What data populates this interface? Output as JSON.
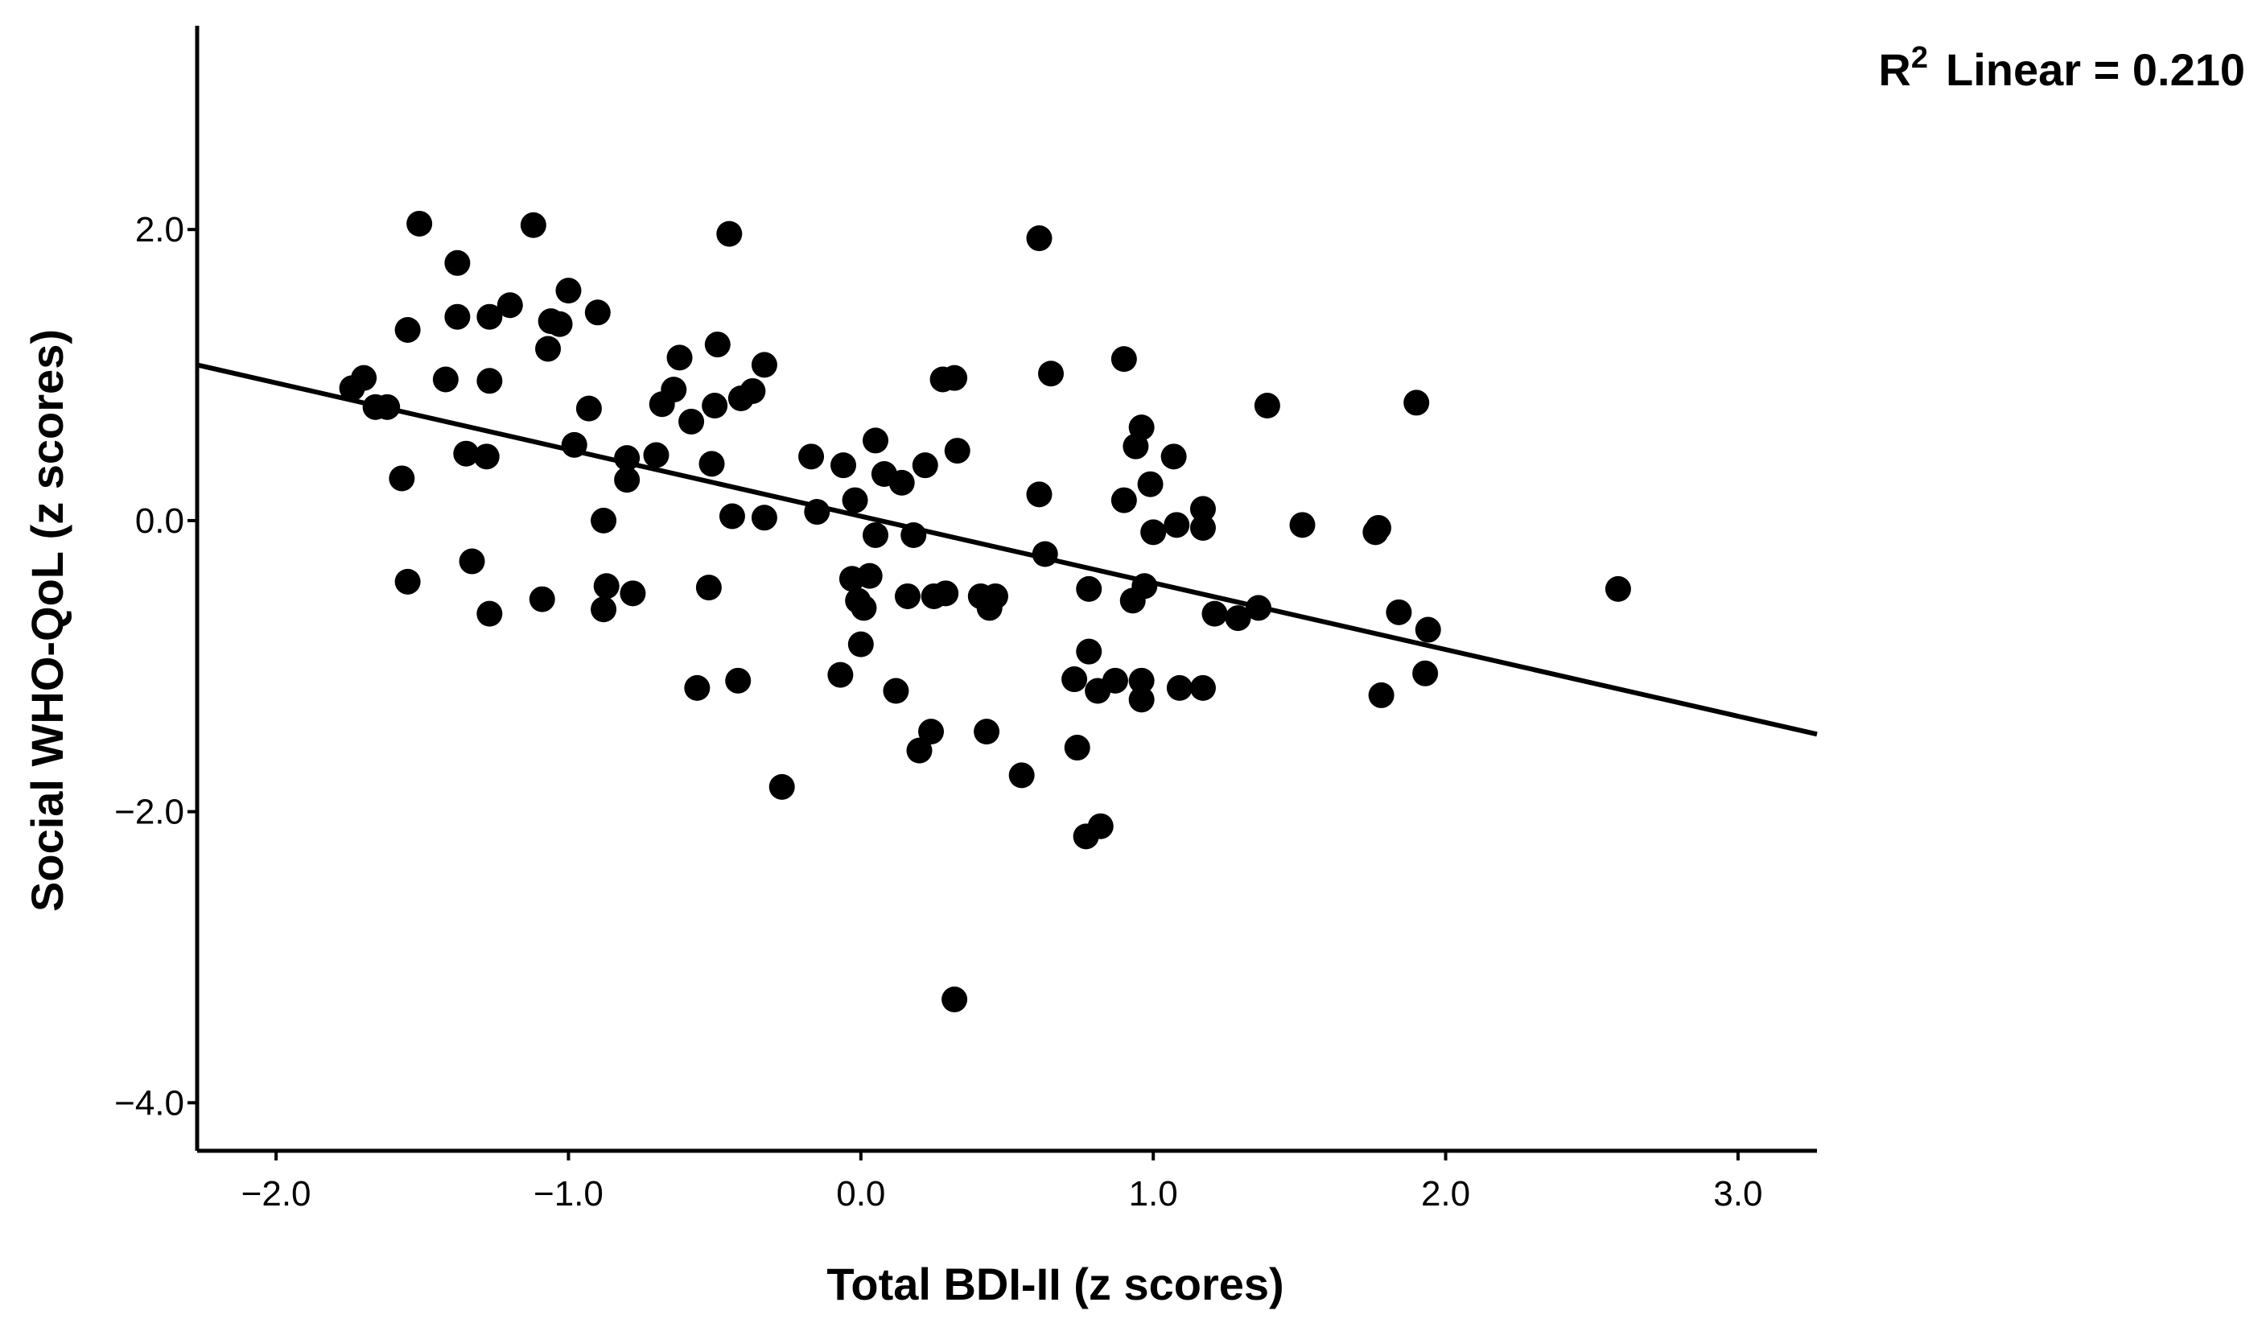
{
  "chart_data": {
    "type": "scatter",
    "xlabel": "Total BDI-II (z scores)",
    "ylabel": "Social WHO-QoL (z scores)",
    "xlim": [
      -2.27,
      3.27
    ],
    "ylim": [
      -4.33,
      3.4
    ],
    "x_ticks": [
      -2.0,
      -1.0,
      0.0,
      1.0,
      2.0,
      3.0
    ],
    "x_tick_labels": [
      "−2.0",
      "−1.0",
      "0.0",
      "1.0",
      "2.0",
      "3.0"
    ],
    "y_ticks": [
      2.0,
      0.0,
      -2.0,
      -4.0
    ],
    "y_tick_labels": [
      "2.0",
      "0.0",
      "−2.0",
      "−4.0"
    ],
    "grid": false,
    "annotation": {
      "prefix": "R",
      "superscript": "2",
      "text": "Linear = 0.210"
    },
    "fit_line": {
      "slope": -0.458,
      "intercept": 0.03
    },
    "series": [
      {
        "marker_color": "#000000",
        "points": [
          [
            -1.74,
            0.91
          ],
          [
            -1.7,
            0.98
          ],
          [
            -1.66,
            0.78
          ],
          [
            -1.62,
            0.78
          ],
          [
            -1.57,
            0.29
          ],
          [
            -1.55,
            1.31
          ],
          [
            -1.55,
            -0.42
          ],
          [
            -1.51,
            2.04
          ],
          [
            -1.42,
            0.97
          ],
          [
            -1.38,
            1.77
          ],
          [
            -1.38,
            1.4
          ],
          [
            -1.35,
            0.46
          ],
          [
            -1.33,
            -0.28
          ],
          [
            -1.28,
            0.44
          ],
          [
            -1.27,
            1.4
          ],
          [
            -1.27,
            0.96
          ],
          [
            -1.27,
            -0.64
          ],
          [
            -1.2,
            1.48
          ],
          [
            -1.12,
            2.03
          ],
          [
            -1.09,
            -0.54
          ],
          [
            -1.07,
            1.18
          ],
          [
            -1.06,
            1.37
          ],
          [
            -1.03,
            1.35
          ],
          [
            -1.0,
            1.58
          ],
          [
            -0.98,
            0.52
          ],
          [
            -0.93,
            0.77
          ],
          [
            -0.9,
            1.43
          ],
          [
            -0.88,
            0.0
          ],
          [
            -0.87,
            -0.45
          ],
          [
            -0.88,
            -0.61
          ],
          [
            -0.8,
            0.43
          ],
          [
            -0.8,
            0.28
          ],
          [
            -0.78,
            -0.5
          ],
          [
            -0.7,
            0.45
          ],
          [
            -0.68,
            0.8
          ],
          [
            -0.64,
            0.9
          ],
          [
            -0.62,
            1.12
          ],
          [
            -0.58,
            0.68
          ],
          [
            -0.56,
            -1.15
          ],
          [
            -0.52,
            -0.46
          ],
          [
            -0.51,
            0.39
          ],
          [
            -0.5,
            0.79
          ],
          [
            -0.49,
            1.21
          ],
          [
            -0.45,
            1.97
          ],
          [
            -0.44,
            0.03
          ],
          [
            -0.42,
            -1.1
          ],
          [
            -0.41,
            0.84
          ],
          [
            -0.37,
            0.89
          ],
          [
            -0.33,
            0.02
          ],
          [
            -0.33,
            1.07
          ],
          [
            -0.27,
            -1.83
          ],
          [
            -0.17,
            0.44
          ],
          [
            -0.15,
            0.06
          ],
          [
            -0.07,
            -1.06
          ],
          [
            -0.06,
            0.38
          ],
          [
            -0.03,
            -0.4
          ],
          [
            -0.02,
            0.14
          ],
          [
            -0.01,
            -0.55
          ],
          [
            0.0,
            -0.85
          ],
          [
            0.01,
            -0.6
          ],
          [
            0.03,
            -0.38
          ],
          [
            0.05,
            -0.1
          ],
          [
            0.05,
            0.55
          ],
          [
            0.08,
            0.32
          ],
          [
            0.12,
            -1.17
          ],
          [
            0.14,
            0.26
          ],
          [
            0.16,
            -0.52
          ],
          [
            0.18,
            -0.1
          ],
          [
            0.2,
            -1.58
          ],
          [
            0.22,
            0.38
          ],
          [
            0.24,
            -1.45
          ],
          [
            0.25,
            -0.52
          ],
          [
            0.28,
            0.97
          ],
          [
            0.29,
            -0.5
          ],
          [
            0.32,
            0.98
          ],
          [
            0.33,
            0.48
          ],
          [
            0.32,
            -3.29
          ],
          [
            0.41,
            -0.52
          ],
          [
            0.43,
            -1.45
          ],
          [
            0.44,
            -0.6
          ],
          [
            0.46,
            -0.52
          ],
          [
            0.55,
            -1.75
          ],
          [
            0.61,
            1.94
          ],
          [
            0.61,
            0.18
          ],
          [
            0.63,
            -0.23
          ],
          [
            0.65,
            1.01
          ],
          [
            0.73,
            -1.09
          ],
          [
            0.74,
            -1.56
          ],
          [
            0.77,
            -2.17
          ],
          [
            0.78,
            -0.47
          ],
          [
            0.78,
            -0.9
          ],
          [
            0.81,
            -1.17
          ],
          [
            0.82,
            -2.1
          ],
          [
            0.87,
            -1.1
          ],
          [
            0.9,
            0.14
          ],
          [
            0.9,
            1.11
          ],
          [
            0.93,
            -0.55
          ],
          [
            0.94,
            0.51
          ],
          [
            0.96,
            0.64
          ],
          [
            0.96,
            -1.1
          ],
          [
            0.96,
            -1.23
          ],
          [
            0.97,
            -0.45
          ],
          [
            0.99,
            0.25
          ],
          [
            1.0,
            -0.08
          ],
          [
            1.07,
            0.44
          ],
          [
            1.08,
            -0.03
          ],
          [
            1.09,
            -1.15
          ],
          [
            1.17,
            0.08
          ],
          [
            1.17,
            -0.05
          ],
          [
            1.17,
            -1.15
          ],
          [
            1.21,
            -0.64
          ],
          [
            1.29,
            -0.67
          ],
          [
            1.36,
            -0.6
          ],
          [
            1.39,
            0.79
          ],
          [
            1.51,
            -0.03
          ],
          [
            1.76,
            -0.08
          ],
          [
            1.77,
            -0.05
          ],
          [
            1.78,
            -1.2
          ],
          [
            1.84,
            -0.63
          ],
          [
            1.9,
            0.81
          ],
          [
            1.93,
            -1.05
          ],
          [
            1.94,
            -0.75
          ],
          [
            2.59,
            -0.47
          ]
        ]
      }
    ]
  }
}
